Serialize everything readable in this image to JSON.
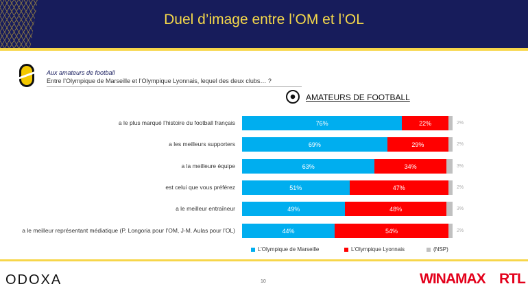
{
  "header": {
    "title": "Duel d’image entre l’OM et l’OL"
  },
  "intro": {
    "subtitle": "Aux amateurs de football",
    "question": "Entre l’Olympique de Marseille et l’Olympique Lyonnais, lequel des deux clubs… ?"
  },
  "panel_title": "AMATEURS DE FOOTBALL",
  "chart_data": {
    "type": "bar",
    "orientation": "horizontal",
    "stacked": true,
    "unit": "%",
    "categories": [
      "a le plus marqué l’histoire du football français",
      "a les meilleurs supporters",
      "a la meilleure équipe",
      "est celui que vous préférez",
      "a le meilleur entraîneur",
      "a le meilleur représentant médiatique (P. Longoria pour l’OM, J-M. Aulas pour l’OL)"
    ],
    "series": [
      {
        "name": "L’Olympique de Marseille",
        "color": "#00aeef",
        "values": [
          76,
          69,
          63,
          51,
          49,
          44
        ]
      },
      {
        "name": "L’Olympique Lyonnais",
        "color": "#ff0000",
        "values": [
          22,
          29,
          34,
          47,
          48,
          54
        ]
      },
      {
        "name": "(NSP)",
        "color": "#c0c0c0",
        "values": [
          2,
          2,
          3,
          2,
          3,
          2
        ]
      }
    ],
    "legend_position": "bottom",
    "xlim": [
      0,
      100
    ]
  },
  "footer": {
    "page": "10",
    "brand": "ODOXA",
    "partner1": "WINAMAX",
    "partner2": "RTL"
  }
}
